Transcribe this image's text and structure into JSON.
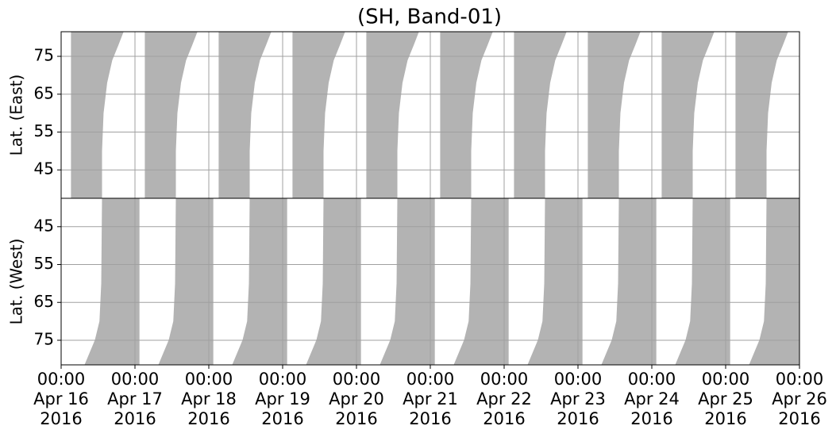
{
  "chart_data": [
    {
      "type": "area",
      "title": "(SH, Band-01)",
      "ylabel": "Lat. (East)",
      "color": "#b3b3b3",
      "grid": true,
      "y_inverted": false,
      "xlim": [
        "2016-04-16T00:00",
        "2016-04-26T00:00"
      ],
      "ylim": [
        37.5,
        81.5
      ],
      "yticks": [
        45,
        55,
        65,
        75
      ],
      "shapes": [
        {
          "x": [
            "2016-04-16T03:20",
            "2016-04-16T13:10",
            "2016-04-16T13:10",
            "2016-04-16T13:40",
            "2016-04-16T14:50",
            "2016-04-16T16:30",
            "2016-04-16T18:30",
            "2016-04-16T20:10",
            "2016-04-16T03:20"
          ],
          "y": [
            37.5,
            37.5,
            50,
            60,
            68,
            74,
            78,
            81.5,
            81.5
          ]
        },
        {
          "x": [
            "2016-04-17T03:20",
            "2016-04-17T13:10",
            "2016-04-17T13:10",
            "2016-04-17T13:40",
            "2016-04-17T14:50",
            "2016-04-17T16:30",
            "2016-04-17T18:30",
            "2016-04-17T20:10",
            "2016-04-17T03:20"
          ],
          "y": [
            37.5,
            37.5,
            50,
            60,
            68,
            74,
            78,
            81.5,
            81.5
          ]
        },
        {
          "x": [
            "2016-04-18T03:20",
            "2016-04-18T13:10",
            "2016-04-18T13:10",
            "2016-04-18T13:40",
            "2016-04-18T14:50",
            "2016-04-18T16:30",
            "2016-04-18T18:30",
            "2016-04-18T20:10",
            "2016-04-18T03:20"
          ],
          "y": [
            37.5,
            37.5,
            50,
            60,
            68,
            74,
            78,
            81.5,
            81.5
          ]
        },
        {
          "x": [
            "2016-04-19T03:20",
            "2016-04-19T13:10",
            "2016-04-19T13:10",
            "2016-04-19T13:40",
            "2016-04-19T14:50",
            "2016-04-19T16:30",
            "2016-04-19T18:30",
            "2016-04-19T20:10",
            "2016-04-19T03:20"
          ],
          "y": [
            37.5,
            37.5,
            50,
            60,
            68,
            74,
            78,
            81.5,
            81.5
          ]
        },
        {
          "x": [
            "2016-04-20T03:20",
            "2016-04-20T13:10",
            "2016-04-20T13:10",
            "2016-04-20T13:40",
            "2016-04-20T14:50",
            "2016-04-20T16:30",
            "2016-04-20T18:30",
            "2016-04-20T20:10",
            "2016-04-20T03:20"
          ],
          "y": [
            37.5,
            37.5,
            50,
            60,
            68,
            74,
            78,
            81.5,
            81.5
          ]
        },
        {
          "x": [
            "2016-04-21T03:20",
            "2016-04-21T13:10",
            "2016-04-21T13:10",
            "2016-04-21T13:40",
            "2016-04-21T14:50",
            "2016-04-21T16:30",
            "2016-04-21T18:30",
            "2016-04-21T20:10",
            "2016-04-21T03:20"
          ],
          "y": [
            37.5,
            37.5,
            50,
            60,
            68,
            74,
            78,
            81.5,
            81.5
          ]
        },
        {
          "x": [
            "2016-04-22T03:20",
            "2016-04-22T13:10",
            "2016-04-22T13:10",
            "2016-04-22T13:40",
            "2016-04-22T14:50",
            "2016-04-22T16:30",
            "2016-04-22T18:30",
            "2016-04-22T20:10",
            "2016-04-22T03:20"
          ],
          "y": [
            37.5,
            37.5,
            50,
            60,
            68,
            74,
            78,
            81.5,
            81.5
          ]
        },
        {
          "x": [
            "2016-04-23T03:20",
            "2016-04-23T13:10",
            "2016-04-23T13:10",
            "2016-04-23T13:40",
            "2016-04-23T14:50",
            "2016-04-23T16:30",
            "2016-04-23T18:30",
            "2016-04-23T20:10",
            "2016-04-23T03:20"
          ],
          "y": [
            37.5,
            37.5,
            50,
            60,
            68,
            74,
            78,
            81.5,
            81.5
          ]
        },
        {
          "x": [
            "2016-04-24T03:20",
            "2016-04-24T13:10",
            "2016-04-24T13:10",
            "2016-04-24T13:40",
            "2016-04-24T14:50",
            "2016-04-24T16:30",
            "2016-04-24T18:30",
            "2016-04-24T20:10",
            "2016-04-24T03:20"
          ],
          "y": [
            37.5,
            37.5,
            50,
            60,
            68,
            74,
            78,
            81.5,
            81.5
          ]
        },
        {
          "x": [
            "2016-04-25T03:20",
            "2016-04-25T13:10",
            "2016-04-25T13:10",
            "2016-04-25T13:40",
            "2016-04-25T14:50",
            "2016-04-25T16:30",
            "2016-04-25T18:30",
            "2016-04-25T20:10",
            "2016-04-25T03:20"
          ],
          "y": [
            37.5,
            37.5,
            50,
            60,
            68,
            74,
            78,
            81.5,
            81.5
          ]
        }
      ]
    },
    {
      "type": "area",
      "ylabel": "Lat. (West)",
      "color": "#b3b3b3",
      "grid": true,
      "y_inverted": true,
      "xlim": [
        "2016-04-16T00:00",
        "2016-04-26T00:00"
      ],
      "ylim": [
        37.5,
        81.5
      ],
      "yticks": [
        45,
        55,
        65,
        75
      ],
      "xticks": [
        {
          "value": "2016-04-16T00:00",
          "label": "00:00\nApr 16\n2016"
        },
        {
          "value": "2016-04-17T00:00",
          "label": "00:00\nApr 17\n2016"
        },
        {
          "value": "2016-04-18T00:00",
          "label": "00:00\nApr 18\n2016"
        },
        {
          "value": "2016-04-19T00:00",
          "label": "00:00\nApr 19\n2016"
        },
        {
          "value": "2016-04-20T00:00",
          "label": "00:00\nApr 20\n2016"
        },
        {
          "value": "2016-04-21T00:00",
          "label": "00:00\nApr 21\n2016"
        },
        {
          "value": "2016-04-22T00:00",
          "label": "00:00\nApr 22\n2016"
        },
        {
          "value": "2016-04-23T00:00",
          "label": "00:00\nApr 23\n2016"
        },
        {
          "value": "2016-04-24T00:00",
          "label": "00:00\nApr 24\n2016"
        },
        {
          "value": "2016-04-25T00:00",
          "label": "00:00\nApr 25\n2016"
        },
        {
          "value": "2016-04-26T00:00",
          "label": "00:00\nApr 26\n2016"
        }
      ],
      "shapes": [
        {
          "x": [
            "2016-04-16T07:45",
            "2016-04-16T11:05",
            "2016-04-16T12:35",
            "2016-04-16T13:10",
            "2016-04-16T13:25",
            "2016-04-17T01:20",
            "2016-04-17T01:20"
          ],
          "y": [
            81.5,
            75,
            70,
            60,
            37.5,
            37.5,
            81.5
          ]
        },
        {
          "x": [
            "2016-04-17T07:45",
            "2016-04-17T11:05",
            "2016-04-17T12:35",
            "2016-04-17T13:10",
            "2016-04-17T13:25",
            "2016-04-18T01:20",
            "2016-04-18T01:20"
          ],
          "y": [
            81.5,
            75,
            70,
            60,
            37.5,
            37.5,
            81.5
          ]
        },
        {
          "x": [
            "2016-04-18T07:45",
            "2016-04-18T11:05",
            "2016-04-18T12:35",
            "2016-04-18T13:10",
            "2016-04-18T13:25",
            "2016-04-19T01:20",
            "2016-04-19T01:20"
          ],
          "y": [
            81.5,
            75,
            70,
            60,
            37.5,
            37.5,
            81.5
          ]
        },
        {
          "x": [
            "2016-04-19T07:45",
            "2016-04-19T11:05",
            "2016-04-19T12:35",
            "2016-04-19T13:10",
            "2016-04-19T13:25",
            "2016-04-20T01:20",
            "2016-04-20T01:20"
          ],
          "y": [
            81.5,
            75,
            70,
            60,
            37.5,
            37.5,
            81.5
          ]
        },
        {
          "x": [
            "2016-04-20T07:45",
            "2016-04-20T11:05",
            "2016-04-20T12:35",
            "2016-04-20T13:10",
            "2016-04-20T13:25",
            "2016-04-21T01:20",
            "2016-04-21T01:20"
          ],
          "y": [
            81.5,
            75,
            70,
            60,
            37.5,
            37.5,
            81.5
          ]
        },
        {
          "x": [
            "2016-04-21T07:45",
            "2016-04-21T11:05",
            "2016-04-21T12:35",
            "2016-04-21T13:10",
            "2016-04-21T13:25",
            "2016-04-22T01:20",
            "2016-04-22T01:20"
          ],
          "y": [
            81.5,
            75,
            70,
            60,
            37.5,
            37.5,
            81.5
          ]
        },
        {
          "x": [
            "2016-04-22T07:45",
            "2016-04-22T11:05",
            "2016-04-22T12:35",
            "2016-04-22T13:10",
            "2016-04-22T13:25",
            "2016-04-23T01:20",
            "2016-04-23T01:20"
          ],
          "y": [
            81.5,
            75,
            70,
            60,
            37.5,
            37.5,
            81.5
          ]
        },
        {
          "x": [
            "2016-04-23T07:45",
            "2016-04-23T11:05",
            "2016-04-23T12:35",
            "2016-04-23T13:10",
            "2016-04-23T13:25",
            "2016-04-24T01:20",
            "2016-04-24T01:20"
          ],
          "y": [
            81.5,
            75,
            70,
            60,
            37.5,
            37.5,
            81.5
          ]
        },
        {
          "x": [
            "2016-04-24T07:45",
            "2016-04-24T11:05",
            "2016-04-24T12:35",
            "2016-04-24T13:10",
            "2016-04-24T13:25",
            "2016-04-25T01:20",
            "2016-04-25T01:20"
          ],
          "y": [
            81.5,
            75,
            70,
            60,
            37.5,
            37.5,
            81.5
          ]
        },
        {
          "x": [
            "2016-04-25T07:45",
            "2016-04-25T11:05",
            "2016-04-25T12:35",
            "2016-04-25T13:10",
            "2016-04-25T13:25",
            "2016-04-26T01:20",
            "2016-04-26T01:20"
          ],
          "y": [
            81.5,
            75,
            70,
            60,
            37.5,
            37.5,
            81.5
          ]
        }
      ]
    }
  ]
}
